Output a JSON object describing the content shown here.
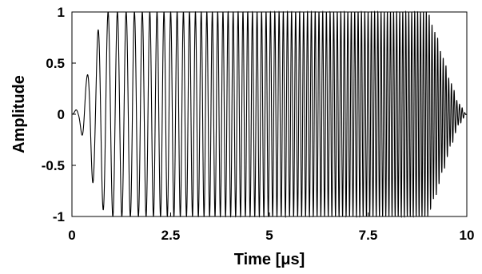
{
  "chart_data": {
    "type": "line",
    "title": "",
    "xlabel": "Time [μs]",
    "ylabel": "Amplitude",
    "xlim": [
      0,
      10
    ],
    "ylim": [
      -1,
      1
    ],
    "xticks": [
      0,
      2.5,
      5,
      7.5,
      10
    ],
    "xtick_labels": [
      "0",
      "2.5",
      "5",
      "7.5",
      "10"
    ],
    "yticks": [
      -1,
      -0.5,
      0,
      0.5,
      1
    ],
    "ytick_labels": [
      "-1",
      "-0.5",
      "0",
      "0.5",
      "1"
    ],
    "grid": false,
    "legend": "none",
    "series": [
      {
        "signal": "linear chirp",
        "start_frequency_mhz": 3,
        "end_frequency_mhz": 15,
        "envelope_time_us": [
          0,
          0.15,
          0.35,
          0.55,
          0.75,
          0.9,
          9.0,
          9.2,
          9.4,
          9.6,
          9.8,
          10.0
        ],
        "envelope_amplitude": [
          0,
          0.06,
          0.35,
          0.68,
          0.92,
          1,
          1,
          0.8,
          0.55,
          0.3,
          0.1,
          0
        ],
        "color": "#000000"
      }
    ]
  }
}
